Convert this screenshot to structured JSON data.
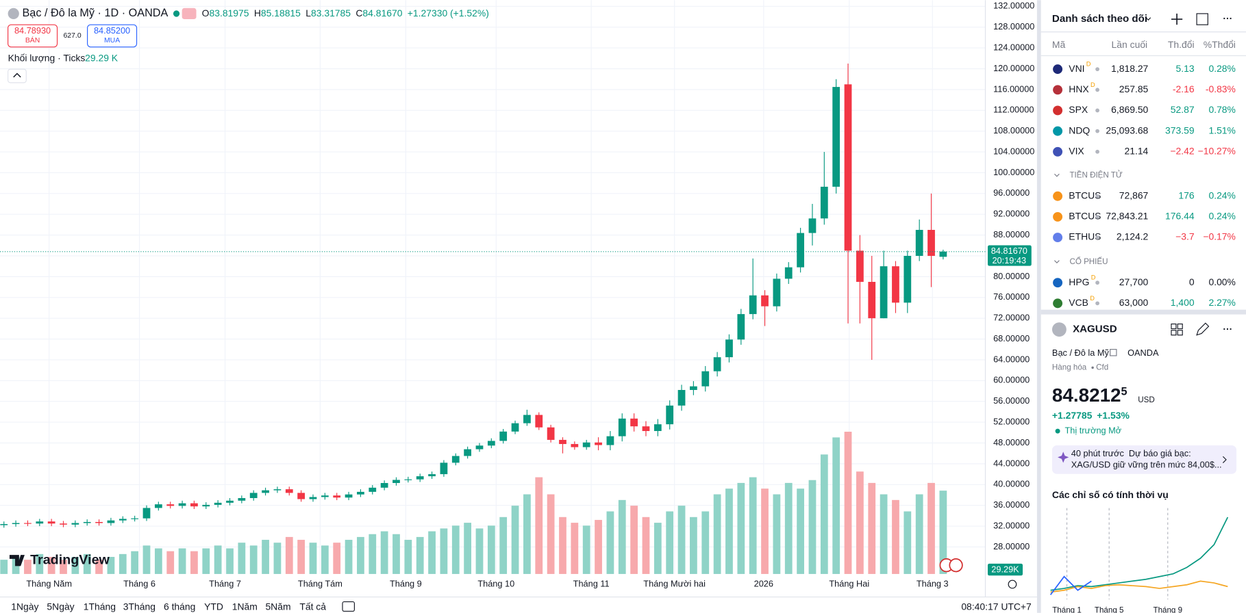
{
  "header": {
    "symbol": "Bạc / Đô la Mỹ · 1D · OANDA",
    "open_label": "O",
    "open": "83.81975",
    "high_label": "H",
    "high": "85.18815",
    "low_label": "L",
    "low": "83.31785",
    "close_label": "C",
    "close": "84.81670",
    "change": "+1.27330 (+1.52%)",
    "sell_price": "84.78930",
    "sell_label": "BÁN",
    "spread": "627.0",
    "buy_price": "84.85200",
    "buy_label": "MUA",
    "volume_label": "Khối lượng · Ticks",
    "volume_value": "29.29 K"
  },
  "chart_data": [
    {
      "type": "candlestick",
      "x": [
        0,
        1,
        2,
        3,
        4,
        5,
        6,
        7,
        8,
        9,
        10,
        11,
        12,
        13,
        14,
        15,
        16,
        17,
        18,
        19,
        20,
        21,
        22,
        23,
        24,
        25,
        26,
        27,
        28,
        29,
        30,
        31,
        32,
        33,
        34,
        35,
        36,
        37,
        38,
        39,
        40,
        41,
        42,
        43,
        44,
        45,
        46,
        47,
        48,
        49,
        50,
        51,
        52,
        53,
        54,
        55,
        56,
        57,
        58,
        59,
        60,
        61,
        62,
        63,
        64,
        65,
        66,
        67,
        68,
        69,
        70,
        71,
        72,
        73,
        74,
        75,
        76,
        77,
        78,
        79
      ],
      "open": [
        32.2,
        32.4,
        32.6,
        32.5,
        32.9,
        32.5,
        32.3,
        32.6,
        32.8,
        32.6,
        33.1,
        33.4,
        33.5,
        35.5,
        36.2,
        35.9,
        36.4,
        35.8,
        36.1,
        36.5,
        36.9,
        37.4,
        38.4,
        38.9,
        39.1,
        38.4,
        37.2,
        37.6,
        37.9,
        37.5,
        38.1,
        38.6,
        39.4,
        40.3,
        40.9,
        41.0,
        41.6,
        42.0,
        44.2,
        45.5,
        46.8,
        47.5,
        48.4,
        50.2,
        51.8,
        53.4,
        51.0,
        48.6,
        47.8,
        47.2,
        48.1,
        47.6,
        49.3,
        52.7,
        51.2,
        50.3,
        51.6,
        55.2,
        58.2,
        58.9,
        61.8,
        64.5,
        67.9,
        72.8,
        76.4,
        74.3,
        79.6,
        81.8,
        88.4,
        91.2,
        97.3,
        117,
        85,
        79,
        72,
        82,
        75,
        84,
        89,
        83.81975
      ],
      "high": [
        32.9,
        33.1,
        33.1,
        33.4,
        33.4,
        33.0,
        33.1,
        33.3,
        33.3,
        33.6,
        33.9,
        34.0,
        36.0,
        36.7,
        36.7,
        36.9,
        36.9,
        36.6,
        37.0,
        37.4,
        37.9,
        38.9,
        39.4,
        39.6,
        39.6,
        38.9,
        38.1,
        38.4,
        38.4,
        38.6,
        39.1,
        39.9,
        40.8,
        41.4,
        41.5,
        42.1,
        42.5,
        44.7,
        46.0,
        47.3,
        48.0,
        48.9,
        50.7,
        52.3,
        54.4,
        53.9,
        51.5,
        49.1,
        48.3,
        48.6,
        49.1,
        50.3,
        53.7,
        53.7,
        52.2,
        52.6,
        56.2,
        59.2,
        59.9,
        62.8,
        65.5,
        68.9,
        73.8,
        83.5,
        77.4,
        80.6,
        82.8,
        89.4,
        94,
        104,
        118,
        121,
        88,
        84,
        85,
        83,
        85,
        91,
        96,
        85.18815
      ],
      "low": [
        31.7,
        31.9,
        32.0,
        32.0,
        32.0,
        31.8,
        31.8,
        32.1,
        32.1,
        32.1,
        32.6,
        32.9,
        33.0,
        35.0,
        35.4,
        35.4,
        35.3,
        35.3,
        35.6,
        36.0,
        36.4,
        36.9,
        37.9,
        38.4,
        37.9,
        36.7,
        36.7,
        37.1,
        37.0,
        37.0,
        37.6,
        38.1,
        38.9,
        39.8,
        40.4,
        40.5,
        41.1,
        41.5,
        43.7,
        45.0,
        46.3,
        47.0,
        47.9,
        49.7,
        51.3,
        50.5,
        48.1,
        46.0,
        46.7,
        46.7,
        46.6,
        46.6,
        48.3,
        50.2,
        49.3,
        49.3,
        50.6,
        54.2,
        57.2,
        57.9,
        60.8,
        63.5,
        66.9,
        71.8,
        70.5,
        73.3,
        78.6,
        80.8,
        86,
        90,
        96,
        71,
        71,
        64,
        72,
        73,
        73,
        83,
        78,
        83.31785
      ],
      "close": [
        32.4,
        32.6,
        32.5,
        32.9,
        32.5,
        32.3,
        32.6,
        32.8,
        32.6,
        33.1,
        33.4,
        33.5,
        35.5,
        36.2,
        35.9,
        36.4,
        35.8,
        36.1,
        36.5,
        36.9,
        37.4,
        38.4,
        38.9,
        39.1,
        38.4,
        37.2,
        37.6,
        37.9,
        37.5,
        38.1,
        38.6,
        39.4,
        40.3,
        40.9,
        41.0,
        41.6,
        42.0,
        44.2,
        45.5,
        46.8,
        47.5,
        48.4,
        50.2,
        51.8,
        53.4,
        51.0,
        48.6,
        47.8,
        47.2,
        48.1,
        47.6,
        49.3,
        52.7,
        51.2,
        50.3,
        51.6,
        55.2,
        58.2,
        58.9,
        61.8,
        64.5,
        67.9,
        72.8,
        76.4,
        74.3,
        79.6,
        81.8,
        88.4,
        91.2,
        97.3,
        116.5,
        85.0,
        79.0,
        72.0,
        82.0,
        75.0,
        84.0,
        89.0,
        84.0,
        84.8167
      ],
      "volume": [
        5,
        6,
        5,
        7,
        6,
        5,
        6,
        7,
        5,
        6,
        7,
        8,
        10,
        9,
        8,
        9,
        8,
        9,
        10,
        9,
        11,
        10,
        12,
        11,
        13,
        12,
        11,
        10,
        11,
        12,
        13,
        14,
        15,
        14,
        12,
        13,
        15,
        16,
        17,
        18,
        16,
        17,
        20,
        24,
        28,
        34,
        28,
        20,
        18,
        17,
        19,
        22,
        26,
        24,
        20,
        18,
        22,
        24,
        20,
        22,
        28,
        30,
        32,
        34,
        30,
        28,
        32,
        30,
        33,
        42,
        48,
        50,
        36,
        32,
        28,
        26,
        22,
        28,
        32,
        29.29
      ],
      "up_color": "#089981",
      "down_color": "#f23645",
      "volume_up_color": "#8fd3c7",
      "volume_down_color": "#f7a9ac",
      "xlim": [
        -0.33,
        82.55
      ],
      "xticks": [
        {
          "value": 3.8,
          "label": "Tháng Năm"
        },
        {
          "value": 11.4,
          "label": "Tháng 6"
        },
        {
          "value": 18.6,
          "label": "Tháng 7"
        },
        {
          "value": 26.6,
          "label": "Tháng Tám"
        },
        {
          "value": 33.8,
          "label": "Tháng 9"
        },
        {
          "value": 41.4,
          "label": "Tháng 10"
        },
        {
          "value": 49.4,
          "label": "Tháng 11"
        },
        {
          "value": 56.4,
          "label": "Tháng Mười hai"
        },
        {
          "value": 63.9,
          "label": "2026"
        },
        {
          "value": 71.1,
          "label": "Tháng Hai"
        },
        {
          "value": 78.1,
          "label": "Tháng 3"
        }
      ],
      "ylim": [
        22.8,
        133.2
      ],
      "yticks": [
        {
          "value": 28,
          "label": "28.00000"
        },
        {
          "value": 32,
          "label": "32.00000"
        },
        {
          "value": 36,
          "label": "36.00000"
        },
        {
          "value": 40,
          "label": "40.00000"
        },
        {
          "value": 44,
          "label": "44.00000"
        },
        {
          "value": 48,
          "label": "48.00000"
        },
        {
          "value": 52,
          "label": "52.00000"
        },
        {
          "value": 56,
          "label": "56.00000"
        },
        {
          "value": 60,
          "label": "60.00000"
        },
        {
          "value": 64,
          "label": "64.00000"
        },
        {
          "value": 68,
          "label": "68.00000"
        },
        {
          "value": 72,
          "label": "72.00000"
        },
        {
          "value": 76,
          "label": "76.00000"
        },
        {
          "value": 80,
          "label": "80.00000"
        },
        {
          "value": 84,
          "label": "84.00000"
        },
        {
          "value": 88,
          "label": "88.00000"
        },
        {
          "value": 92,
          "label": "92.00000"
        },
        {
          "value": 96,
          "label": "96.00000"
        },
        {
          "value": 100,
          "label": "100.00000"
        },
        {
          "value": 104,
          "label": "104.00000"
        },
        {
          "value": 108,
          "label": "108.00000"
        },
        {
          "value": 112,
          "label": "112.00000"
        },
        {
          "value": 116,
          "label": "116.00000"
        },
        {
          "value": 120,
          "label": "120.00000"
        },
        {
          "value": 124,
          "label": "124.00000"
        },
        {
          "value": 128,
          "label": "128.00000"
        },
        {
          "value": 132,
          "label": "132.00000"
        }
      ],
      "y2lim": [
        0,
        201.7
      ],
      "grid": true,
      "last_price_label": "84.81670",
      "countdown_label": "20:19:43",
      "last_volume_label": "29.29K"
    },
    {
      "type": "line",
      "title": "Các chỉ số có tính thời vụ",
      "x": [
        0,
        1,
        2,
        3,
        4,
        5,
        6,
        7,
        8,
        9,
        10,
        11,
        12,
        13
      ],
      "series": [
        {
          "color": "#089981",
          "values": [
            10,
            12,
            15,
            14,
            16,
            18,
            20,
            22,
            25,
            28,
            35,
            45,
            60,
            90
          ]
        },
        {
          "color": "#f5a623",
          "values": [
            8,
            10,
            14,
            12,
            15,
            16,
            15,
            14,
            12,
            14,
            16,
            20,
            18,
            14
          ]
        },
        {
          "color": "#2962ff",
          "values": [
            5,
            25,
            10,
            20,
            null,
            null,
            null,
            null,
            null,
            null,
            null,
            null,
            null,
            null
          ]
        }
      ],
      "xlim": [
        0,
        13
      ],
      "ylim": [
        0,
        100
      ],
      "xticks": [
        {
          "value": 1.2,
          "label": "Tháng 1"
        },
        {
          "value": 4.3,
          "label": "Tháng 5"
        },
        {
          "value": 8.6,
          "label": "Tháng 9"
        }
      ],
      "grid": true
    }
  ],
  "toolbar": {
    "ranges": [
      "1Ngày",
      "5Ngày",
      "1Tháng",
      "3Tháng",
      "6 tháng",
      "YTD",
      "1Năm",
      "5Năm",
      "Tất cả"
    ],
    "clock": "08:40:17 UTC+7",
    "logo": "TradingView"
  },
  "watchlist": {
    "title": "Danh sách theo dõi",
    "columns": [
      "Mã",
      "Lần cuối",
      "Th.đổi",
      "%Thđổi"
    ],
    "rows": [
      {
        "symbol": "VNI",
        "flag": "D",
        "last": "1,818.27",
        "change": "5.13",
        "pct": "0.28%",
        "dir": "up",
        "icon": "#1e2a78"
      },
      {
        "symbol": "HNX",
        "flag": "D",
        "last": "257.85",
        "change": "-2.16",
        "pct": "-0.83%",
        "dir": "dn",
        "icon": "#b5313a"
      },
      {
        "symbol": "SPX",
        "last": "6,869.50",
        "change": "52.87",
        "pct": "0.78%",
        "dir": "up",
        "icon": "#d32f2f"
      },
      {
        "symbol": "NDQ",
        "last": "25,093.68",
        "change": "373.59",
        "pct": "1.51%",
        "dir": "up",
        "icon": "#0097a7"
      },
      {
        "symbol": "VIX",
        "last": "21.14",
        "change": "−2.42",
        "pct": "−10.27%",
        "dir": "dn",
        "icon": "#3f51b5"
      }
    ],
    "section_crypto": "TIỀN ĐIỆN TỬ",
    "crypto": [
      {
        "symbol": "BTCUS",
        "last": "72,867",
        "change": "176",
        "pct": "0.24%",
        "dir": "up",
        "icon": "#f7931a"
      },
      {
        "symbol": "BTCUS",
        "last": "72,843.21",
        "change": "176.44",
        "pct": "0.24%",
        "dir": "up",
        "icon": "#f7931a"
      },
      {
        "symbol": "ETHUS",
        "last": "2,124.2",
        "change": "−3.7",
        "pct": "−0.17%",
        "dir": "dn",
        "icon": "#627eea"
      }
    ],
    "section_stocks": "CỔ PHIẾU",
    "stocks": [
      {
        "symbol": "HPG",
        "flag": "D",
        "last": "27,700",
        "change": "0",
        "pct": "0.00%",
        "dir": "flat",
        "icon": "#1565c0"
      },
      {
        "symbol": "VCB",
        "flag": "D",
        "last": "63,000",
        "change": "1,400",
        "pct": "2.27%",
        "dir": "up",
        "icon": "#2e7d32"
      }
    ]
  },
  "details": {
    "symbol": "XAGUSD",
    "name": "Bạc / Đô la Mỹ",
    "exchange": "OANDA",
    "category": "Hàng hóa",
    "kind": "Cfd",
    "price": "84.8212",
    "price_tail": "5",
    "currency": "USD",
    "change": "+1.27785",
    "change_pct": "+1.53%",
    "market": "Thị trường Mở",
    "news_time": "40 phút trước",
    "news_line1": "Dự báo giá bạc:",
    "news_line2": "XAG/USD giữ vững trên mức 84,00$..."
  }
}
